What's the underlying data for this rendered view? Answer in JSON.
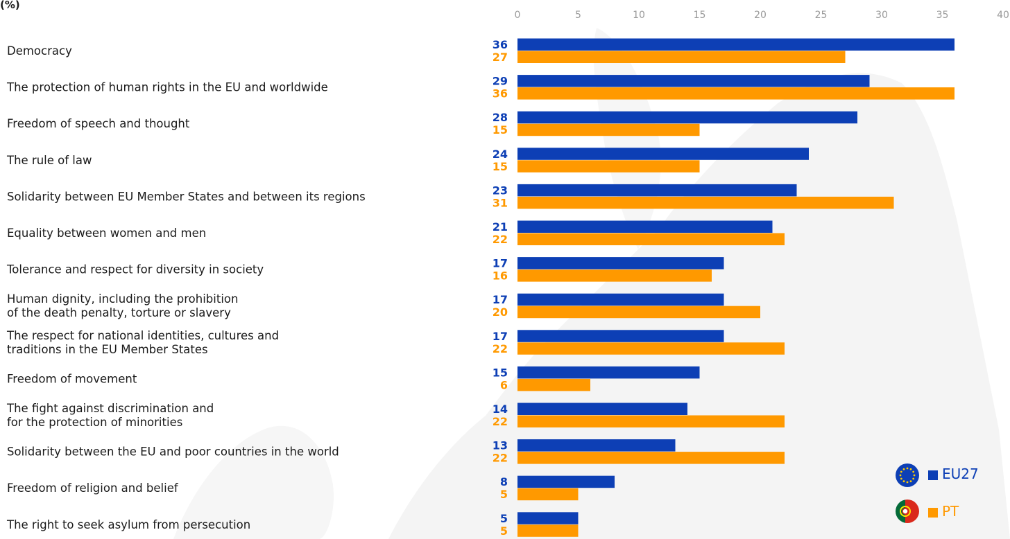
{
  "unit_label": "(%)",
  "colors": {
    "eu27": "#0d3fb5",
    "pt": "#ff9900",
    "tick": "#9a9a9a"
  },
  "legend": {
    "items": [
      {
        "label": "EU27",
        "icon": "eu-flag-icon",
        "color": "#0d3fb5"
      },
      {
        "label": "PT",
        "icon": "portugal-flag-icon",
        "color": "#ff9900"
      }
    ]
  },
  "chart_data": {
    "type": "bar",
    "orientation": "horizontal",
    "xlim": [
      0,
      40
    ],
    "ticks": [
      0,
      5,
      10,
      15,
      20,
      25,
      30,
      35,
      40
    ],
    "grid": false,
    "legend_position": "bottom-right",
    "categories": [
      [
        "Democracy"
      ],
      [
        "The protection of human rights in the EU and worldwide"
      ],
      [
        "Freedom of speech and thought"
      ],
      [
        "The rule of law"
      ],
      [
        "Solidarity between EU Member States and between its regions"
      ],
      [
        "Equality between women and men"
      ],
      [
        "Tolerance and respect for diversity in society"
      ],
      [
        "Human dignity, including the prohibition",
        "of the death penalty, torture or slavery"
      ],
      [
        "The respect for national identities, cultures and",
        "traditions in the EU Member States"
      ],
      [
        "Freedom of movement"
      ],
      [
        "The fight against discrimination and",
        "for the protection of minorities"
      ],
      [
        "Solidarity between the EU and poor countries in the world"
      ],
      [
        "Freedom of religion and belief"
      ],
      [
        "The right to seek asylum from persecution"
      ]
    ],
    "series": [
      {
        "name": "EU27",
        "color": "#0d3fb5",
        "values": [
          36,
          29,
          28,
          24,
          23,
          21,
          17,
          17,
          17,
          15,
          14,
          13,
          8,
          5
        ]
      },
      {
        "name": "PT",
        "color": "#ff9900",
        "values": [
          27,
          36,
          15,
          15,
          31,
          22,
          16,
          20,
          22,
          6,
          22,
          22,
          5,
          5
        ]
      }
    ]
  }
}
